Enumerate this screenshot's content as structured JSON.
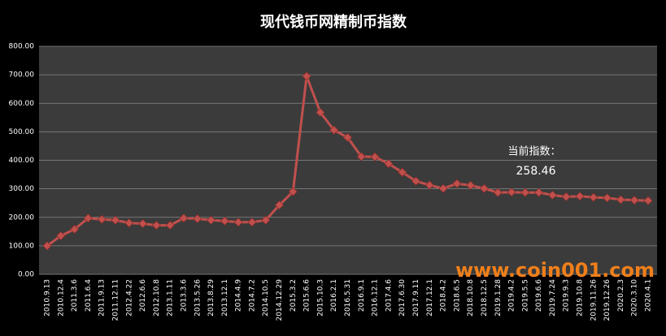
{
  "chart_data": {
    "type": "line",
    "title": "现代钱币网精制币指数",
    "categories": [
      "2010.9.13",
      "2010.12.4",
      "2011.3.6",
      "2011.6.4",
      "2011.9.13",
      "2011.12.11",
      "2012.4.22",
      "2012.6.6",
      "2012.10.8",
      "2013.1.11",
      "2013.3.6",
      "2013.5.26",
      "2013.8.29",
      "2013.12.1",
      "2014.4.9",
      "2014.7.2",
      "2014.10.5",
      "2014.12.29",
      "2015.3.2",
      "2015.6.6",
      "2015.10.3",
      "2016.2.1",
      "2016.5.31",
      "2016.9.1",
      "2016.12.1",
      "2017.4.6",
      "2017.6.30",
      "2017.9.11",
      "2017.12.1",
      "2018.4.2",
      "2018.6.5",
      "2018.10.8",
      "2018.12.5",
      "2019.1.28",
      "2019.4.2",
      "2019.5.5",
      "2019.6.6",
      "2019.7.24",
      "2019.9.3",
      "2019.10.8",
      "2019.11.26",
      "2019.12.26",
      "2020.2.3",
      "2020.3.10",
      "2020.4.1"
    ],
    "series": [
      {
        "name": "精制币指数",
        "color": "#c0504d",
        "values": [
          100,
          135,
          158,
          197,
          193,
          190,
          180,
          178,
          172,
          172,
          197,
          195,
          190,
          187,
          183,
          183,
          190,
          243,
          290,
          695,
          568,
          506,
          480,
          413,
          412,
          388,
          358,
          327,
          313,
          301,
          318,
          312,
          301,
          287,
          288,
          287,
          287,
          278,
          272,
          274,
          270,
          268,
          262,
          260,
          258.46
        ]
      }
    ],
    "ylim": [
      0,
      800
    ],
    "yticks": [
      {
        "value": 0,
        "label": "0.00"
      },
      {
        "value": 100,
        "label": "100.00"
      },
      {
        "value": 200,
        "label": "200.00"
      },
      {
        "value": 300,
        "label": "300.00"
      },
      {
        "value": 400,
        "label": "400.00"
      },
      {
        "value": 500,
        "label": "500.00"
      },
      {
        "value": 600,
        "label": "600.00"
      },
      {
        "value": 700,
        "label": "700.00"
      },
      {
        "value": 800,
        "label": "800.00"
      }
    ],
    "grid": true,
    "annotations": [
      "当前指数：",
      "258.46"
    ],
    "watermark": "www.coin001.com"
  }
}
